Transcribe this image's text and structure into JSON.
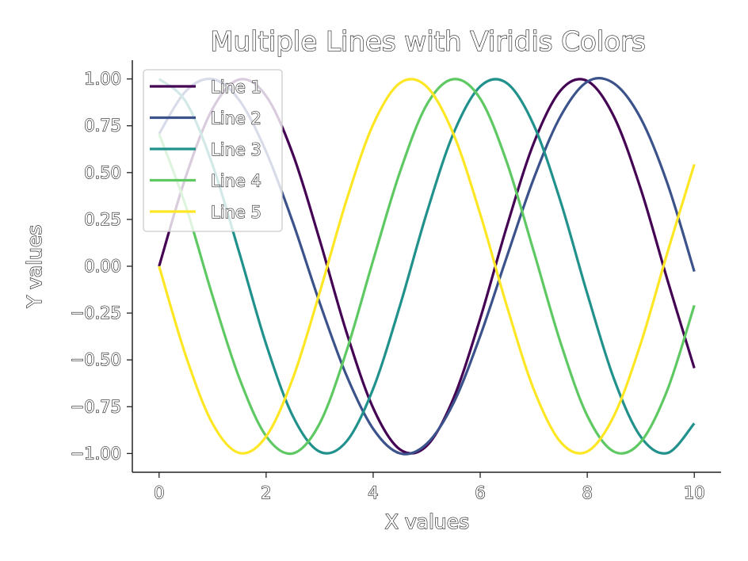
{
  "chart_data": {
    "type": "line",
    "title": "Multiple Lines with Viridis Colors",
    "xlabel": "X values",
    "ylabel": "Y values",
    "xlim": [
      -0.5,
      10.5
    ],
    "ylim": [
      -1.1,
      1.1
    ],
    "xticks": [
      0,
      2,
      4,
      6,
      8,
      10
    ],
    "xtick_labels": [
      "0",
      "2",
      "4",
      "6",
      "8",
      "10"
    ],
    "yticks": [
      -1.0,
      -0.75,
      -0.5,
      -0.25,
      0.0,
      0.25,
      0.5,
      0.75,
      1.0
    ],
    "ytick_labels": [
      "−1.00",
      "−0.75",
      "−0.50",
      "−0.25",
      "0.00",
      "0.25",
      "0.50",
      "0.75",
      "1.00"
    ],
    "grid": false,
    "legend_position": "upper-left",
    "x": [
      0,
      0.5,
      1,
      1.5,
      2,
      2.5,
      3,
      3.5,
      4,
      4.5,
      5,
      5.5,
      6,
      6.5,
      7,
      7.5,
      8,
      8.5,
      9,
      9.5,
      10
    ],
    "series": [
      {
        "name": "Line 1",
        "color": "#440154",
        "values": [
          0.0,
          0.479,
          0.841,
          0.997,
          0.909,
          0.598,
          0.141,
          -0.351,
          -0.757,
          -0.978,
          -0.959,
          -0.706,
          -0.279,
          0.215,
          0.657,
          0.938,
          0.989,
          0.798,
          0.412,
          -0.075,
          -0.544
        ]
      },
      {
        "name": "Line 2",
        "color": "#3b528b",
        "values": [
          0.707,
          0.935,
          0.999,
          0.886,
          0.612,
          0.234,
          -0.194,
          -0.582,
          -0.868,
          -0.999,
          -0.948,
          -0.731,
          -0.372,
          0.053,
          0.468,
          0.8,
          0.985,
          0.976,
          0.789,
          0.44,
          -0.028
        ]
      },
      {
        "name": "Line 3",
        "color": "#21918c",
        "values": [
          1.0,
          0.878,
          0.54,
          0.071,
          -0.416,
          -0.801,
          -0.99,
          -0.936,
          -0.654,
          -0.211,
          0.284,
          0.709,
          0.96,
          0.977,
          0.754,
          0.347,
          -0.146,
          -0.602,
          -0.911,
          -0.997,
          -0.839
        ]
      },
      {
        "name": "Line 4",
        "color": "#5ec962",
        "values": [
          0.707,
          0.32,
          -0.16,
          -0.598,
          -0.907,
          -0.999,
          -0.84,
          -0.455,
          0.032,
          0.503,
          0.862,
          0.999,
          0.895,
          0.553,
          0.079,
          -0.407,
          -0.798,
          -0.99,
          -0.938,
          -0.658,
          -0.209
        ]
      },
      {
        "name": "Line 5",
        "color": "#fde725",
        "values": [
          0.0,
          -0.479,
          -0.841,
          -0.997,
          -0.909,
          -0.598,
          -0.141,
          0.351,
          0.757,
          0.978,
          0.959,
          0.706,
          0.279,
          -0.215,
          -0.657,
          -0.938,
          -0.989,
          -0.798,
          -0.412,
          0.075,
          0.544
        ]
      }
    ]
  }
}
